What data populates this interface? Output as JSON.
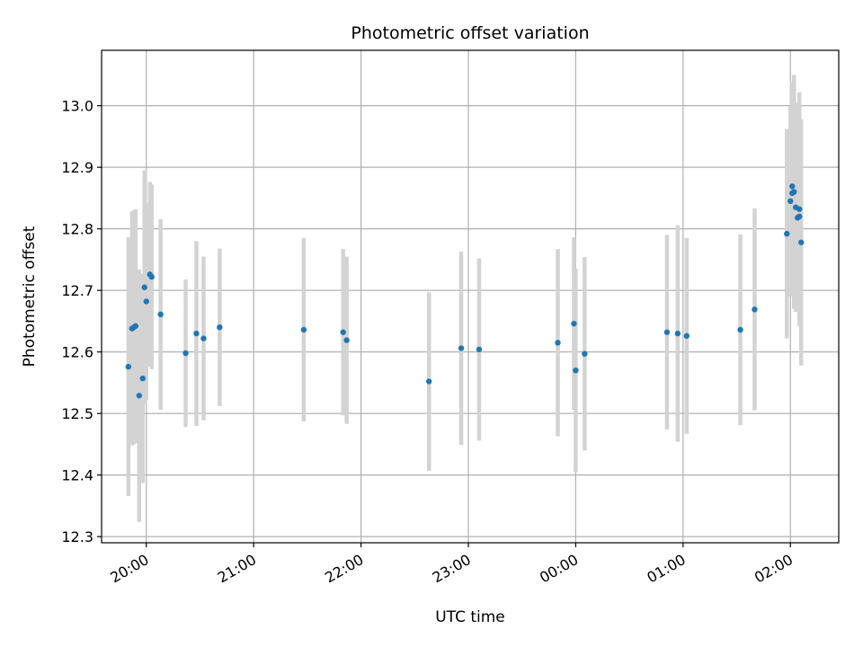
{
  "chart_data": {
    "type": "scatter",
    "title": "Photometric offset variation",
    "xlabel": "UTC time",
    "ylabel": "Photometric offset",
    "grid": true,
    "x_is_time": true,
    "xlim": [
      "19:35",
      "02:27"
    ],
    "ylim": [
      12.29,
      13.09
    ],
    "xticks": [
      "20:00",
      "21:00",
      "22:00",
      "23:00",
      "00:00",
      "01:00",
      "02:00"
    ],
    "yticks": [
      "12.3",
      "12.4",
      "12.5",
      "12.6",
      "12.7",
      "12.8",
      "12.9",
      "13.0"
    ],
    "marker_color": "#1f77b4",
    "errorbar_color": "#d3d3d3",
    "points": [
      {
        "time": "19:50",
        "y": 12.576,
        "yerr": 0.21
      },
      {
        "time": "19:52",
        "y": 12.638,
        "yerr": 0.19
      },
      {
        "time": "19:53",
        "y": 12.64,
        "yerr": 0.19
      },
      {
        "time": "19:54",
        "y": 12.642,
        "yerr": 0.19
      },
      {
        "time": "19:56",
        "y": 12.529,
        "yerr": 0.205
      },
      {
        "time": "19:58",
        "y": 12.557,
        "yerr": 0.17
      },
      {
        "time": "19:59",
        "y": 12.705,
        "yerr": 0.19
      },
      {
        "time": "20:00",
        "y": 12.682,
        "yerr": 0.16
      },
      {
        "time": "20:02",
        "y": 12.726,
        "yerr": 0.15
      },
      {
        "time": "20:03",
        "y": 12.722,
        "yerr": 0.15
      },
      {
        "time": "20:08",
        "y": 12.661,
        "yerr": 0.155
      },
      {
        "time": "20:22",
        "y": 12.598,
        "yerr": 0.12
      },
      {
        "time": "20:28",
        "y": 12.63,
        "yerr": 0.15
      },
      {
        "time": "20:32",
        "y": 12.622,
        "yerr": 0.133
      },
      {
        "time": "20:41",
        "y": 12.64,
        "yerr": 0.128
      },
      {
        "time": "21:28",
        "y": 12.636,
        "yerr": 0.149
      },
      {
        "time": "21:50",
        "y": 12.632,
        "yerr": 0.135
      },
      {
        "time": "21:52",
        "y": 12.619,
        "yerr": 0.136
      },
      {
        "time": "22:38",
        "y": 12.552,
        "yerr": 0.145
      },
      {
        "time": "22:56",
        "y": 12.606,
        "yerr": 0.157
      },
      {
        "time": "23:06",
        "y": 12.604,
        "yerr": 0.148
      },
      {
        "time": "23:50",
        "y": 12.615,
        "yerr": 0.152
      },
      {
        "time": "23:59",
        "y": 12.646,
        "yerr": 0.14
      },
      {
        "time": "00:00",
        "y": 12.57,
        "yerr": 0.165
      },
      {
        "time": "00:05",
        "y": 12.597,
        "yerr": 0.157
      },
      {
        "time": "00:51",
        "y": 12.632,
        "yerr": 0.158
      },
      {
        "time": "00:57",
        "y": 12.63,
        "yerr": 0.176
      },
      {
        "time": "01:02",
        "y": 12.626,
        "yerr": 0.159
      },
      {
        "time": "01:32",
        "y": 12.636,
        "yerr": 0.155
      },
      {
        "time": "01:40",
        "y": 12.669,
        "yerr": 0.164
      },
      {
        "time": "01:58",
        "y": 12.792,
        "yerr": 0.17
      },
      {
        "time": "02:00",
        "y": 12.845,
        "yerr": 0.155
      },
      {
        "time": "02:01",
        "y": 12.858,
        "yerr": 0.14
      },
      {
        "time": "02:01",
        "y": 12.869,
        "yerr": 0.17
      },
      {
        "time": "02:02",
        "y": 12.86,
        "yerr": 0.19
      },
      {
        "time": "02:03",
        "y": 12.835,
        "yerr": 0.17
      },
      {
        "time": "02:04",
        "y": 12.818,
        "yerr": 0.15
      },
      {
        "time": "02:05",
        "y": 12.832,
        "yerr": 0.19
      },
      {
        "time": "02:05",
        "y": 12.82,
        "yerr": 0.17
      },
      {
        "time": "02:06",
        "y": 12.778,
        "yerr": 0.2
      }
    ]
  }
}
